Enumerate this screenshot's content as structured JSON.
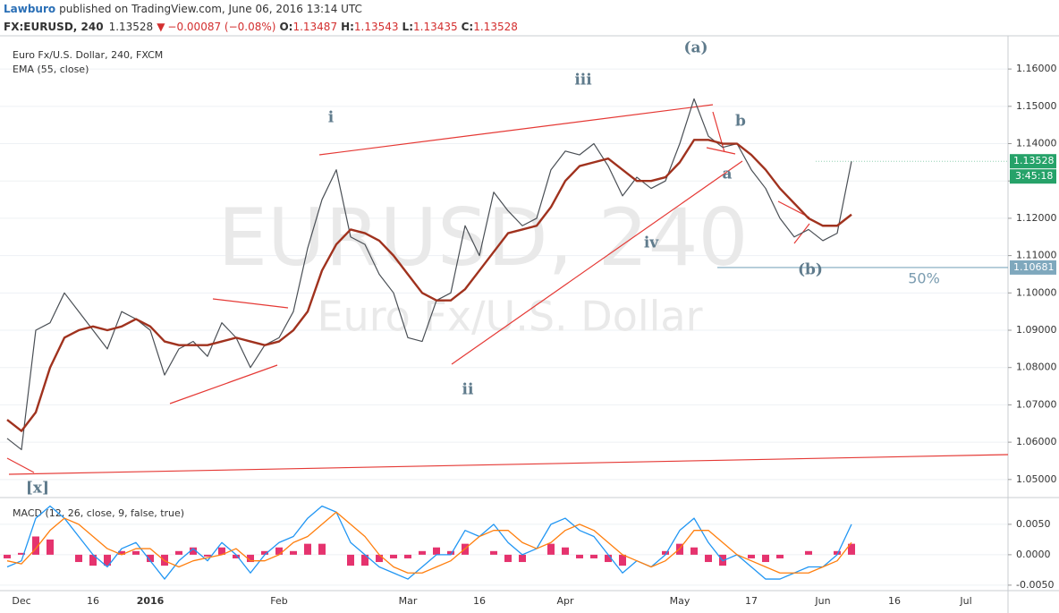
{
  "header": {
    "author": "Lawburo",
    "published": "published on TradingView.com, June 06, 2016 13:14 UTC",
    "symbol": "FX:EURUSD, 240",
    "last": "1.13528",
    "arrow": "▼",
    "change": "−0.00087 (−0.08%)",
    "open_label": "O:",
    "open": "1.13487",
    "high_label": "H:",
    "high": "1.13543",
    "low_label": "L:",
    "low": "1.13435",
    "close_label": "C:",
    "close": "1.13528"
  },
  "chart_data": {
    "type": "line",
    "watermark": "EURUSD, 240",
    "watermark_name": "Euro Fx/U.S. Dollar",
    "categories": [
      null,
      "Dec",
      null,
      null,
      null,
      null,
      "16",
      null,
      null,
      null,
      "2016",
      null,
      null,
      null,
      null,
      null,
      null,
      null,
      null,
      "Feb",
      null,
      null,
      null,
      null,
      null,
      null,
      null,
      null,
      "Mar",
      null,
      null,
      null,
      null,
      "16",
      null,
      null,
      null,
      null,
      null,
      "Apr",
      null,
      null,
      null,
      null,
      null,
      null,
      null,
      "May",
      null,
      null,
      null,
      null,
      "17",
      null,
      null,
      null,
      null,
      "Jun",
      null,
      null,
      null,
      null,
      "16",
      null,
      null,
      null,
      null,
      "Jul",
      null,
      null
    ],
    "series": [
      {
        "name": "Euro Fx/U.S. Dollar, 240, FXCM",
        "color": "#4a4f55",
        "values": [
          1.061,
          1.058,
          1.09,
          1.092,
          1.1,
          1.095,
          1.09,
          1.085,
          1.095,
          1.093,
          1.09,
          1.078,
          1.085,
          1.087,
          1.083,
          1.092,
          1.088,
          1.08,
          1.086,
          1.088,
          1.095,
          1.112,
          1.125,
          1.133,
          1.115,
          1.113,
          1.105,
          1.1,
          1.088,
          1.087,
          1.098,
          1.1,
          1.118,
          1.11,
          1.127,
          1.122,
          1.118,
          1.12,
          1.133,
          1.138,
          1.137,
          1.14,
          1.134,
          1.126,
          1.131,
          1.128,
          1.13,
          1.14,
          1.152,
          1.142,
          1.139,
          1.14,
          1.133,
          1.128,
          1.12,
          1.115,
          1.117,
          1.114,
          1.116,
          1.13528,
          null,
          null,
          null,
          null,
          null,
          null,
          null,
          null,
          null,
          null
        ]
      },
      {
        "name": "EMA (55, close)",
        "color": "#a0321e",
        "values": [
          1.066,
          1.063,
          1.068,
          1.08,
          1.088,
          1.09,
          1.091,
          1.09,
          1.091,
          1.093,
          1.091,
          1.087,
          1.086,
          1.086,
          1.086,
          1.087,
          1.088,
          1.087,
          1.086,
          1.087,
          1.09,
          1.095,
          1.106,
          1.113,
          1.117,
          1.116,
          1.114,
          1.11,
          1.105,
          1.1,
          1.098,
          1.098,
          1.101,
          1.106,
          1.111,
          1.116,
          1.117,
          1.118,
          1.123,
          1.13,
          1.134,
          1.135,
          1.136,
          1.133,
          1.13,
          1.13,
          1.131,
          1.135,
          1.141,
          1.141,
          1.14,
          1.14,
          1.137,
          1.133,
          1.128,
          1.124,
          1.12,
          1.118,
          1.118,
          1.121,
          null,
          null,
          null,
          null,
          null,
          null,
          null,
          null,
          null,
          null
        ]
      }
    ],
    "ylim": [
      1.0454,
      1.1689
    ],
    "yticks": [
      {
        "value": 1.05,
        "label": "1.05000"
      },
      {
        "value": 1.06,
        "label": "1.06000"
      },
      {
        "value": 1.07,
        "label": "1.07000"
      },
      {
        "value": 1.08,
        "label": "1.08000"
      },
      {
        "value": 1.09,
        "label": "1.09000"
      },
      {
        "value": 1.1,
        "label": "1.10000"
      },
      {
        "value": 1.11,
        "label": "1.11000"
      },
      {
        "value": 1.12,
        "label": "1.12000"
      },
      {
        "value": 1.13,
        "label": "1.13000"
      },
      {
        "value": 1.14,
        "label": "1.14000"
      },
      {
        "value": 1.15,
        "label": "1.15000"
      },
      {
        "value": 1.16,
        "label": "1.16000"
      }
    ],
    "grid": true,
    "last_price": 1.13528,
    "last_price_color": "#26a269",
    "countdown": "3:45:18",
    "level": 1.10681,
    "level_color": "#7fa8bd",
    "annotations": [
      "(a)",
      "iii",
      "i",
      "b",
      "a",
      "iv",
      "ii",
      "(b)",
      "[x]",
      "50%"
    ],
    "macd": {
      "ylim": [
        -0.0059,
        0.0091
      ],
      "yticks": [
        {
          "value": -0.005,
          "label": "-0.0050"
        },
        {
          "value": 0,
          "label": "0.0000"
        },
        {
          "value": 0.005,
          "label": "0.0050"
        }
      ],
      "histogram_color": "#e5336e",
      "histogram": [
        -0.0006,
        0.0003,
        0.003,
        0.0025,
        0,
        -0.0012,
        -0.0018,
        -0.0018,
        0.0006,
        0.0006,
        -0.0012,
        -0.0018,
        0.0006,
        0.0012,
        -0.0003,
        0.0012,
        -0.0006,
        -0.0012,
        0.0006,
        0.0012,
        0.0006,
        0.0018,
        0.0018,
        0,
        -0.0018,
        -0.0018,
        -0.0012,
        -0.0006,
        -0.0006,
        0.0006,
        0.0012,
        0.0006,
        0.0018,
        0,
        0.0006,
        -0.0012,
        -0.0012,
        0,
        0.0018,
        0.0012,
        -0.0006,
        -0.0006,
        -0.0012,
        -0.0018,
        0,
        0,
        0.0006,
        0.0018,
        0.0012,
        -0.0012,
        -0.0018,
        0,
        -0.0006,
        -0.0012,
        -0.0006,
        0,
        0.0006,
        0,
        0.0006,
        0.0018,
        null,
        null,
        null,
        null,
        null,
        null,
        null,
        null,
        null,
        null
      ],
      "series": [
        {
          "name": "MACD (12, 26, close, 9, false, true)",
          "color": "#2196f3",
          "values": [
            -0.002,
            -0.001,
            0.006,
            0.008,
            0.006,
            0.003,
            0,
            -0.002,
            0.001,
            0.002,
            -0.001,
            -0.004,
            -0.001,
            0.001,
            -0.001,
            0.002,
            0,
            -0.003,
            0,
            0.002,
            0.003,
            0.006,
            0.008,
            0.007,
            0.002,
            0,
            -0.002,
            -0.003,
            -0.004,
            -0.002,
            0,
            0,
            0.004,
            0.003,
            0.005,
            0.002,
            0,
            0.001,
            0.005,
            0.006,
            0.004,
            0.003,
            0,
            -0.003,
            -0.001,
            -0.002,
            0,
            0.004,
            0.006,
            0.002,
            -0.001,
            0,
            -0.002,
            -0.004,
            -0.004,
            -0.003,
            -0.002,
            -0.002,
            0,
            0.005,
            null,
            null,
            null,
            null,
            null,
            null,
            null,
            null,
            null,
            null
          ]
        },
        {
          "color": "#ff7f0e",
          "values": [
            -0.001,
            -0.0015,
            0.001,
            0.004,
            0.006,
            0.005,
            0.003,
            0.001,
            0,
            0.001,
            0.001,
            -0.001,
            -0.002,
            -0.001,
            -0.0005,
            0,
            0.001,
            -0.001,
            -0.001,
            0,
            0.002,
            0.003,
            0.005,
            0.007,
            0.005,
            0.003,
            0,
            -0.002,
            -0.003,
            -0.003,
            -0.002,
            -0.001,
            0.001,
            0.003,
            0.004,
            0.004,
            0.002,
            0.001,
            0.002,
            0.004,
            0.005,
            0.004,
            0.002,
            0,
            -0.001,
            -0.002,
            -0.001,
            0.001,
            0.004,
            0.004,
            0.002,
            0,
            -0.001,
            -0.002,
            -0.003,
            -0.003,
            -0.003,
            -0.002,
            -0.001,
            0.002,
            null,
            null,
            null,
            null,
            null,
            null,
            null,
            null,
            null,
            null
          ]
        }
      ]
    }
  }
}
